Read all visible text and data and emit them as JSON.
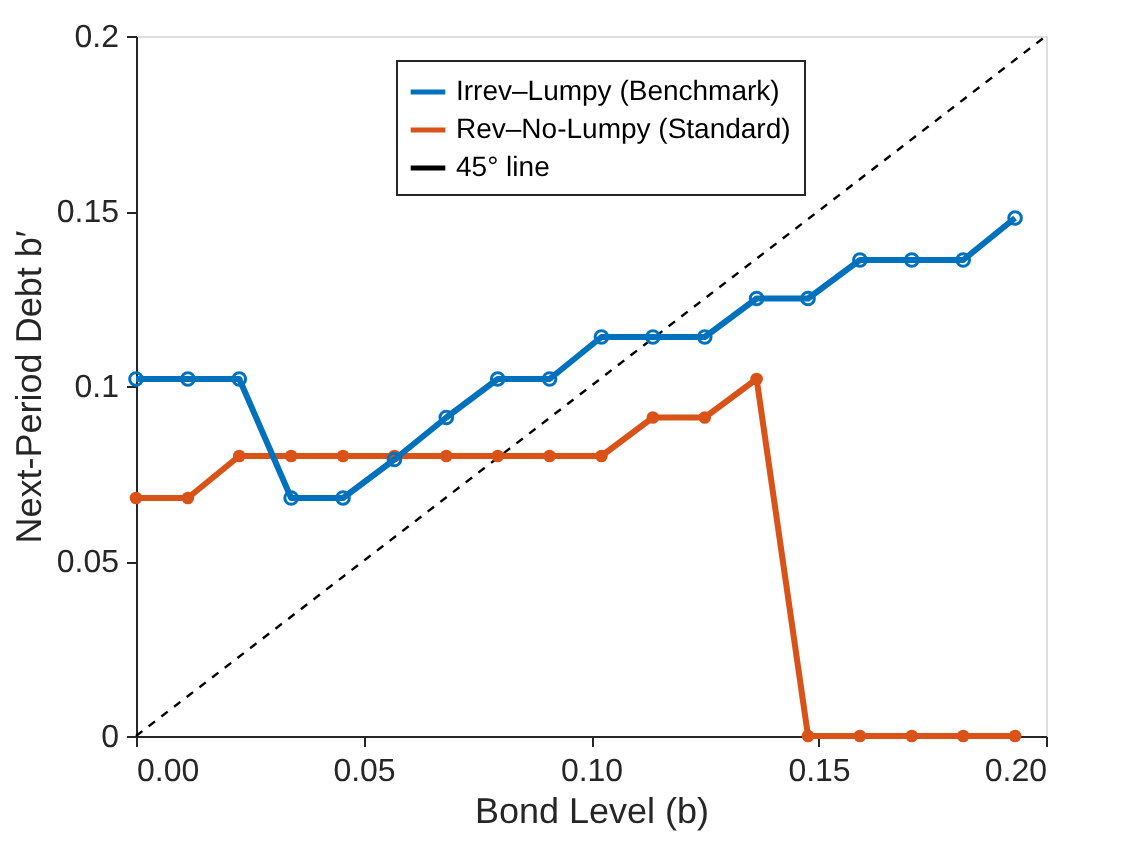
{
  "chart_data": {
    "type": "line",
    "xlabel": "Bond Level (b)",
    "ylabel": "Next-Period Debt b′",
    "xlim": [
      0,
      0.2
    ],
    "ylim": [
      0,
      0.2
    ],
    "xticks": [
      {
        "value": 0,
        "label": "0.00"
      },
      {
        "value": 0.05,
        "label": "0.05"
      },
      {
        "value": 0.1,
        "label": "0.10"
      },
      {
        "value": 0.15,
        "label": "0.15"
      },
      {
        "value": 0.2,
        "label": "0.20"
      }
    ],
    "yticks": [
      0,
      0.05,
      0.1,
      0.15,
      0.2
    ],
    "grid": false,
    "legend": "top",
    "series": [
      {
        "name": "Irrev–Lumpy (Benchmark)",
        "color": "#0072bd",
        "marker": "circle",
        "line_style": "solid",
        "x": [
          0,
          0.0114,
          0.0227,
          0.0341,
          0.0455,
          0.0568,
          0.0682,
          0.0795,
          0.0909,
          0.1023,
          0.1136,
          0.125,
          0.1364,
          0.1477,
          0.1591,
          0.1705,
          0.1818,
          0.1932
        ],
        "values": [
          0.102,
          0.102,
          0.102,
          0.068,
          0.068,
          0.079,
          0.091,
          0.102,
          0.102,
          0.114,
          0.114,
          0.114,
          0.125,
          0.125,
          0.136,
          0.136,
          0.136,
          0.148
        ]
      },
      {
        "name": "Rev–No-Lumpy (Standard)",
        "color": "#d95319",
        "marker": "circle",
        "line_style": "solid",
        "x": [
          0,
          0.0114,
          0.0227,
          0.0341,
          0.0455,
          0.0568,
          0.0682,
          0.0795,
          0.0909,
          0.1023,
          0.1136,
          0.125,
          0.1364,
          0.1477,
          0.1591,
          0.1705,
          0.1818,
          0.1932
        ],
        "values": [
          0.068,
          0.068,
          0.08,
          0.08,
          0.08,
          0.08,
          0.08,
          0.08,
          0.08,
          0.08,
          0.091,
          0.091,
          0.102,
          0,
          0,
          0,
          0,
          0
        ]
      },
      {
        "name": "45° line",
        "color": "#000000",
        "marker": "none",
        "line_style": "dashed",
        "x": [
          0,
          0.2
        ],
        "values": [
          0,
          0.2
        ]
      }
    ]
  }
}
